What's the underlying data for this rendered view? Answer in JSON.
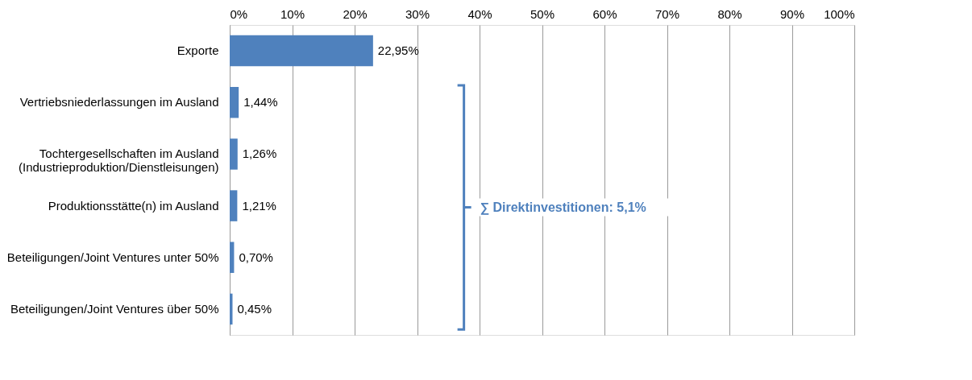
{
  "chart_data": {
    "type": "bar",
    "orientation": "horizontal",
    "categories": [
      "Exporte",
      "Vertriebsniederlassungen im Ausland",
      "Tochtergesellschaften im Ausland\n(Industrieproduktion/Dienstleisungen)",
      "Produktionsstätte(n) im Ausland",
      "Beteiligungen/Joint Ventures unter 50%",
      "Beteiligungen/Joint Ventures über 50%"
    ],
    "values": [
      22.95,
      1.44,
      1.26,
      1.21,
      0.7,
      0.45
    ],
    "value_labels": [
      "22,95%",
      "1,44%",
      "1,26%",
      "1,21%",
      "0,70%",
      "0,45%"
    ],
    "color": "#4f81bd",
    "xlim": [
      0,
      100
    ],
    "xticks": [
      {
        "value": 0,
        "label": "0%"
      },
      {
        "value": 10,
        "label": "10%"
      },
      {
        "value": 20,
        "label": "20%"
      },
      {
        "value": 30,
        "label": "30%"
      },
      {
        "value": 40,
        "label": "40%"
      },
      {
        "value": 50,
        "label": "50%"
      },
      {
        "value": 60,
        "label": "60%"
      },
      {
        "value": 70,
        "label": "70%"
      },
      {
        "value": 80,
        "label": "80%"
      },
      {
        "value": 90,
        "label": "90%"
      },
      {
        "value": 100,
        "label": "100%"
      }
    ],
    "grid": "x",
    "annotations": [
      "∑ Direktinvestitionen: 5,1%"
    ]
  }
}
